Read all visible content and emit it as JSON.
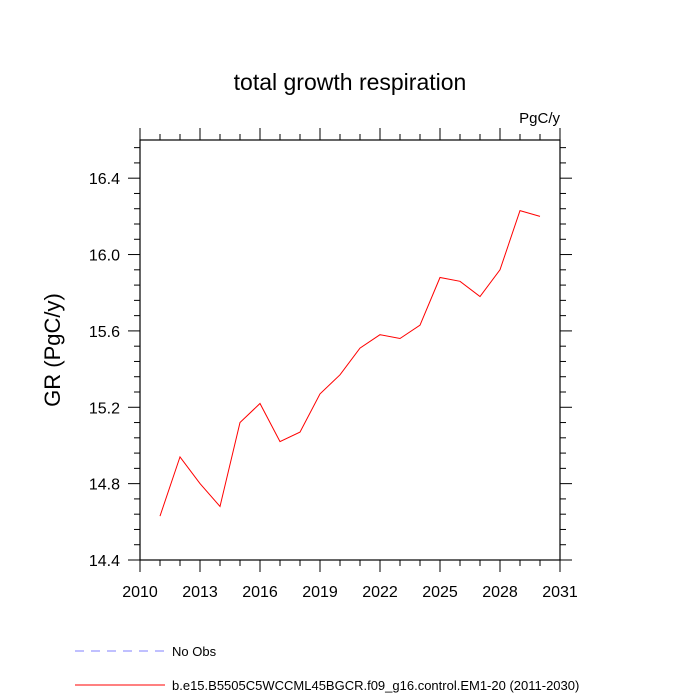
{
  "chart_data": {
    "type": "line",
    "title": "total growth respiration",
    "units_label": "PgC/y",
    "ylabel": "GR  (PgC/y)",
    "xlabel": "",
    "xlim": [
      2010,
      2031
    ],
    "ylim": [
      14.4,
      16.6
    ],
    "x_ticks": [
      2010,
      2013,
      2016,
      2019,
      2022,
      2025,
      2028,
      2031
    ],
    "y_ticks": [
      14.4,
      14.8,
      15.2,
      15.6,
      16.0,
      16.4
    ],
    "y_tick_labels": [
      "14.4",
      "14.8",
      "15.2",
      "15.6",
      "16.0",
      "16.4"
    ],
    "grid": false,
    "legend_position": "bottom",
    "series": [
      {
        "name": "b.e15.B5505C5WCCML45BGCR.f09_g16.control.EM1-20 (2011-2030)",
        "color": "#ff0000",
        "style": "solid",
        "x": [
          2011,
          2012,
          2013,
          2014,
          2015,
          2016,
          2017,
          2018,
          2019,
          2020,
          2021,
          2022,
          2023,
          2024,
          2025,
          2026,
          2027,
          2028,
          2029,
          2030
        ],
        "values": [
          14.63,
          14.94,
          14.8,
          14.68,
          15.12,
          15.22,
          15.02,
          15.07,
          15.27,
          15.37,
          15.51,
          15.58,
          15.56,
          15.63,
          15.88,
          15.86,
          15.78,
          15.92,
          16.23,
          16.2
        ]
      },
      {
        "name": "No Obs",
        "color": "#8080ff",
        "style": "dashed",
        "x": [],
        "values": []
      }
    ]
  }
}
